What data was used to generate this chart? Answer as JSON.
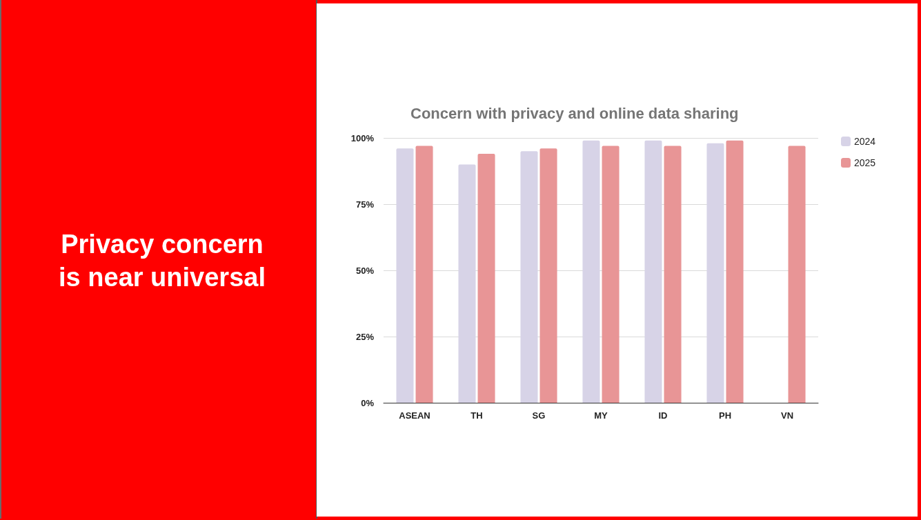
{
  "chart_data": {
    "type": "bar",
    "title": "Concern with privacy and online data sharing",
    "annotations": [
      "Privacy concern is near universal"
    ],
    "categories": [
      "ASEAN",
      "TH",
      "SG",
      "MY",
      "ID",
      "PH",
      "VN"
    ],
    "series": [
      {
        "name": "2024",
        "color": "#d7d3e7",
        "values": [
          96,
          90,
          95,
          99,
          99,
          98,
          null
        ]
      },
      {
        "name": "2025",
        "color": "#e89596",
        "values": [
          97,
          94,
          96,
          97,
          97,
          99,
          97
        ]
      }
    ],
    "ylim": [
      0,
      100
    ],
    "yticks": [
      {
        "value": 0,
        "label": "0%"
      },
      {
        "value": 25,
        "label": "25%"
      },
      {
        "value": 50,
        "label": "50%"
      },
      {
        "value": 75,
        "label": "75%"
      },
      {
        "value": 100,
        "label": "100%"
      }
    ],
    "grid": "y",
    "legend": "top right"
  }
}
